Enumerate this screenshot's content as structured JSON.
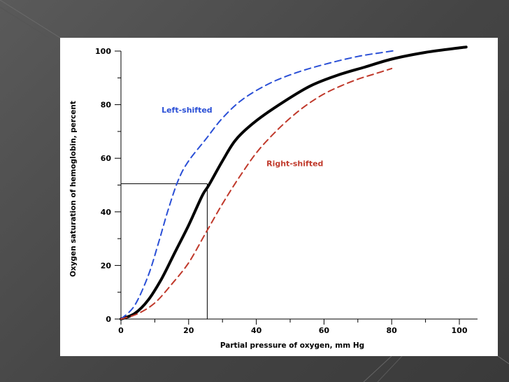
{
  "chart_data": {
    "type": "line",
    "title": "",
    "xlabel": "Partial pressure of oxygen, mm Hg",
    "ylabel": "Oxygen saturation of hemoglobin, percent",
    "xlim": [
      0,
      104
    ],
    "ylim": [
      0,
      100
    ],
    "x_ticks": [
      0,
      20,
      40,
      60,
      80,
      100
    ],
    "y_ticks": [
      0,
      20,
      40,
      60,
      80,
      100
    ],
    "grid": false,
    "legend": "none",
    "series": [
      {
        "key": "normal",
        "color": "#000000",
        "style": "solid",
        "points": [
          [
            0,
            0
          ],
          [
            4,
            2
          ],
          [
            8,
            7
          ],
          [
            12,
            15
          ],
          [
            16,
            25
          ],
          [
            20,
            35
          ],
          [
            24,
            46
          ],
          [
            26,
            50
          ],
          [
            30,
            59
          ],
          [
            34,
            67
          ],
          [
            40,
            74
          ],
          [
            48,
            81
          ],
          [
            56,
            87
          ],
          [
            64,
            91
          ],
          [
            72,
            94
          ],
          [
            80,
            97
          ],
          [
            90,
            99.5
          ],
          [
            100,
            101.2
          ],
          [
            102,
            101.5
          ]
        ]
      },
      {
        "key": "left",
        "name": "Left-shifted",
        "color": "#2a4fd6",
        "style": "dashed",
        "points": [
          [
            0,
            0
          ],
          [
            4,
            5
          ],
          [
            8,
            16
          ],
          [
            11,
            28
          ],
          [
            14,
            41
          ],
          [
            17,
            52
          ],
          [
            20,
            59
          ],
          [
            25,
            67
          ],
          [
            30,
            75
          ],
          [
            36,
            82
          ],
          [
            44,
            88
          ],
          [
            52,
            92
          ],
          [
            60,
            95
          ],
          [
            70,
            98
          ],
          [
            78,
            99.6
          ],
          [
            81,
            100.2
          ]
        ]
      },
      {
        "key": "right",
        "name": "Right-shifted",
        "color": "#c0392b",
        "style": "dashed",
        "points": [
          [
            0,
            0
          ],
          [
            5,
            2
          ],
          [
            10,
            6
          ],
          [
            15,
            13
          ],
          [
            20,
            21
          ],
          [
            25,
            32
          ],
          [
            30,
            43
          ],
          [
            35,
            53
          ],
          [
            40,
            62
          ],
          [
            45,
            69
          ],
          [
            50,
            75
          ],
          [
            55,
            80
          ],
          [
            60,
            84
          ],
          [
            65,
            87
          ],
          [
            70,
            89.5
          ],
          [
            75,
            91.5
          ],
          [
            80,
            93.5
          ]
        ]
      }
    ],
    "p50_guide": {
      "x": 25.5,
      "y": 50.5
    },
    "annotations": [
      {
        "key": "left",
        "text": "Left-shifted",
        "x": 12,
        "y": 77,
        "color": "#2a4fd6"
      },
      {
        "key": "right",
        "text": "Right-shifted",
        "x": 43,
        "y": 57,
        "color": "#c0392b"
      }
    ]
  }
}
